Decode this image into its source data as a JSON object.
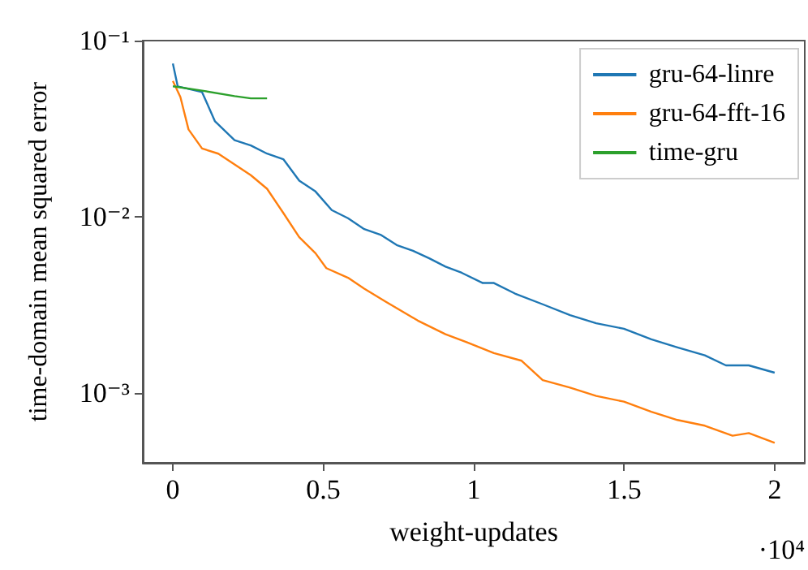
{
  "chart_data": {
    "type": "line",
    "xlabel": "weight-updates",
    "ylabel": "time-domain mean squared error",
    "log": "y",
    "xlim": [
      -0.1,
      2.1
    ],
    "xticks": [
      0,
      0.5,
      1,
      1.5,
      2
    ],
    "ylim": [
      0.0004,
      0.1
    ],
    "yticks": [
      {
        "value": 0.1,
        "label": "10⁻¹"
      },
      {
        "value": 0.01,
        "label": "10⁻²"
      },
      {
        "value": 0.001,
        "label": "10⁻³"
      }
    ],
    "grid": false,
    "legend": "top right",
    "line_style": "solid",
    "marker": "none",
    "annotations": [
      "·10⁴"
    ],
    "series": [
      {
        "name": "gru-64-linre",
        "color": "#1f77b4",
        "x": [
          0,
          0.016,
          0.097,
          0.14,
          0.205,
          0.259,
          0.313,
          0.367,
          0.42,
          0.474,
          0.528,
          0.582,
          0.636,
          0.69,
          0.744,
          0.798,
          0.852,
          0.906,
          0.96,
          1.03,
          1.067,
          1.137,
          1.229,
          1.32,
          1.407,
          1.499,
          1.59,
          1.677,
          1.768,
          1.838,
          1.914,
          2.0
        ],
        "values": [
          0.074,
          0.055,
          0.051,
          0.0348,
          0.0272,
          0.0254,
          0.0228,
          0.0212,
          0.016,
          0.0139,
          0.0109,
          0.0098,
          0.0085,
          0.0079,
          0.0069,
          0.0064,
          0.0058,
          0.0052,
          0.0048,
          0.0042,
          0.0042,
          0.00366,
          0.00318,
          0.00276,
          0.00248,
          0.00231,
          0.00201,
          0.00181,
          0.00163,
          0.00143,
          0.00143,
          0.0013
        ]
      },
      {
        "name": "gru-64-fft-16",
        "color": "#ff7f0e",
        "x": [
          0,
          0.025,
          0.052,
          0.097,
          0.151,
          0.205,
          0.259,
          0.313,
          0.367,
          0.42,
          0.474,
          0.51,
          0.582,
          0.636,
          0.706,
          0.814,
          0.906,
          0.976,
          1.067,
          1.159,
          1.229,
          1.32,
          1.407,
          1.499,
          1.59,
          1.677,
          1.768,
          1.86,
          1.914,
          2.0
        ],
        "values": [
          0.059,
          0.0478,
          0.0313,
          0.0244,
          0.0228,
          0.0198,
          0.0172,
          0.0144,
          0.0105,
          0.00765,
          0.0062,
          0.0051,
          0.0045,
          0.0039,
          0.0033,
          0.00257,
          0.00215,
          0.00194,
          0.00168,
          0.00152,
          0.00118,
          0.00107,
          0.00096,
          0.00089,
          0.00078,
          0.0007,
          0.00065,
          0.00057,
          0.00059,
          0.00052
        ]
      },
      {
        "name": "time-gru",
        "color": "#2ca02c",
        "x": [
          0,
          0.097,
          0.205,
          0.259,
          0.313
        ],
        "values": [
          0.055,
          0.052,
          0.0484,
          0.047,
          0.047
        ]
      }
    ]
  }
}
